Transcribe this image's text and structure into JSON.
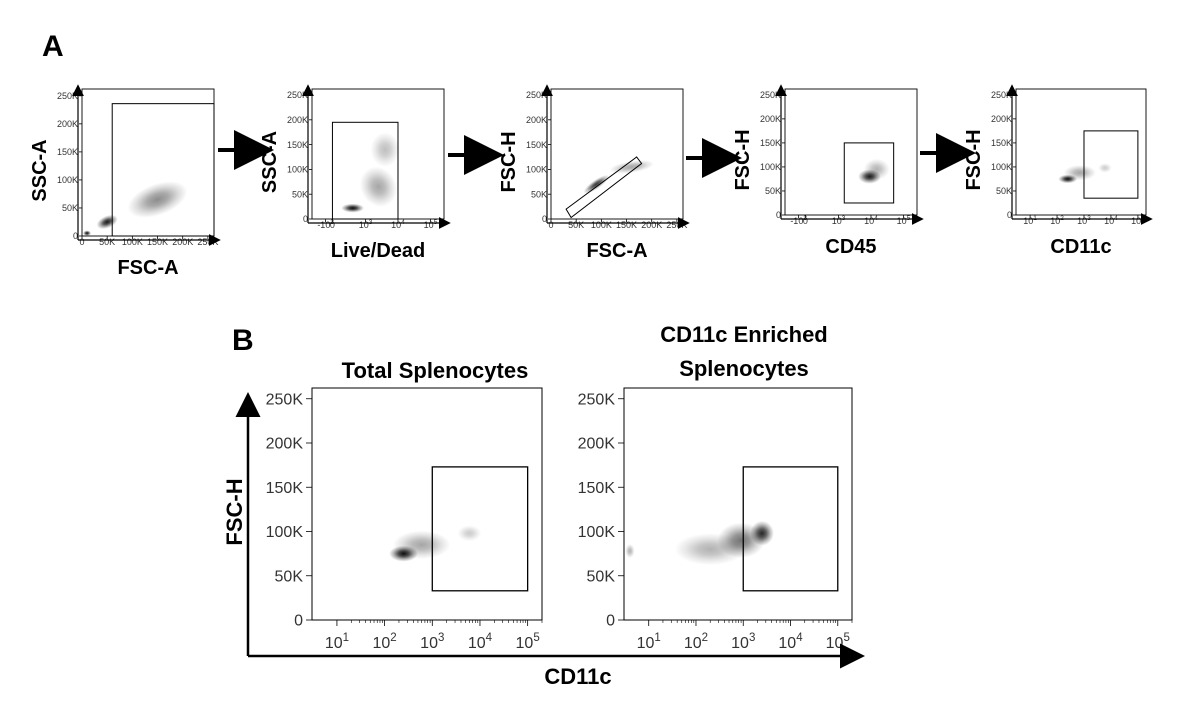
{
  "panels": {
    "a": "A",
    "b": "B"
  },
  "chart_data": [
    {
      "type": "heatmap",
      "id": "a1",
      "xlabel": "FSC-A",
      "ylabel": "SSC-A",
      "x_scale": "linear",
      "x_ticks": [
        "0",
        "50K",
        "100K",
        "150K",
        "200K",
        "250K"
      ],
      "y_ticks": [
        "0",
        "50K",
        "100K",
        "150K",
        "200K",
        "250K"
      ],
      "x_range": [
        0,
        262144
      ],
      "y_range": [
        0,
        262144
      ],
      "gate": {
        "x": [
          60000,
          262144
        ],
        "y": [
          0,
          236000
        ]
      },
      "density": [
        {
          "x": 150000,
          "y": 65000,
          "sx": 62000,
          "sy": 28000,
          "rot": -0.35,
          "w": 0.45
        },
        {
          "x": 50000,
          "y": 25000,
          "sx": 22000,
          "sy": 11000,
          "rot": -0.4,
          "w": 0.9
        },
        {
          "x": 10000,
          "y": 5000,
          "sx": 8000,
          "sy": 5000,
          "rot": 0,
          "w": 0.95
        }
      ]
    },
    {
      "type": "heatmap",
      "id": "a2",
      "xlabel": "Live/Dead",
      "ylabel": "SSC-A",
      "x_scale": "biex",
      "x_ticks": [
        "-10^3",
        "0",
        "10^3",
        "10^4",
        "10^5"
      ],
      "y_ticks": [
        "0",
        "50K",
        "100K",
        "150K",
        "200K",
        "250K"
      ],
      "x_range": [
        -3000,
        262144
      ],
      "y_range": [
        0,
        262144
      ],
      "gate": {
        "x": [
          0,
          10000
        ],
        "y": [
          0,
          195000
        ]
      },
      "density": [
        {
          "x": 2500,
          "y": 65000,
          "sx": 0.55,
          "sy": 42000,
          "rot": -0.5,
          "w": 0.35
        },
        {
          "x": 4000,
          "y": 140000,
          "sx": 0.45,
          "sy": 35000,
          "rot": 0,
          "w": 0.25
        },
        {
          "x": 400,
          "y": 22000,
          "sx": 0.35,
          "sy": 9000,
          "rot": 0,
          "w": 0.95
        }
      ]
    },
    {
      "type": "heatmap",
      "id": "a3",
      "xlabel": "FSC-A",
      "ylabel": "FSC-H",
      "x_scale": "linear",
      "x_ticks": [
        "0",
        "50K",
        "100K",
        "150K",
        "200K",
        "250K"
      ],
      "y_ticks": [
        "0",
        "50K",
        "100K",
        "150K",
        "200K",
        "250K"
      ],
      "x_range": [
        0,
        262144
      ],
      "y_range": [
        0,
        262144
      ],
      "gate_polygon": [
        [
          30000,
          20000
        ],
        [
          170000,
          125000
        ],
        [
          180000,
          112000
        ],
        [
          40000,
          3000
        ]
      ],
      "density": [
        {
          "x": 160000,
          "y": 105000,
          "sx": 45000,
          "sy": 12000,
          "rot": -0.15,
          "w": 0.35
        },
        {
          "x": 90000,
          "y": 70000,
          "sx": 30000,
          "sy": 9000,
          "rot": -0.6,
          "w": 0.8
        }
      ]
    },
    {
      "type": "heatmap",
      "id": "a4",
      "xlabel": "CD45",
      "ylabel": "FSC-H",
      "x_scale": "biex",
      "x_ticks": [
        "-10^3",
        "0",
        "10^3",
        "10^4",
        "10^5"
      ],
      "y_ticks": [
        "0",
        "50K",
        "100K",
        "150K",
        "200K",
        "250K"
      ],
      "x_range": [
        -3000,
        262144
      ],
      "y_range": [
        0,
        262144
      ],
      "gate": {
        "x": [
          1500,
          50000
        ],
        "y": [
          25000,
          150000
        ]
      },
      "density": [
        {
          "x": 9000,
          "y": 80000,
          "sx": 0.35,
          "sy": 15000,
          "rot": 0,
          "w": 0.9
        },
        {
          "x": 15000,
          "y": 95000,
          "sx": 0.4,
          "sy": 22000,
          "rot": 0,
          "w": 0.3
        }
      ]
    },
    {
      "type": "heatmap",
      "id": "a5",
      "xlabel": "CD11c",
      "ylabel": "FSC-H",
      "x_scale": "log",
      "x_ticks": [
        "10^1",
        "10^2",
        "10^3",
        "10^4",
        "10^5"
      ],
      "y_ticks": [
        "0",
        "50K",
        "100K",
        "150K",
        "200K",
        "250K"
      ],
      "x_range": [
        3,
        200000
      ],
      "y_range": [
        0,
        262144
      ],
      "gate": {
        "x": [
          1000,
          100000
        ],
        "y": [
          35000,
          175000
        ]
      },
      "density": [
        {
          "x": 250,
          "y": 75000,
          "sx": 0.35,
          "sy": 9000,
          "rot": 0,
          "w": 0.95
        },
        {
          "x": 700,
          "y": 88000,
          "sx": 0.6,
          "sy": 16000,
          "rot": 0,
          "w": 0.35
        },
        {
          "x": 6000,
          "y": 98000,
          "sx": 0.25,
          "sy": 10000,
          "rot": 0,
          "w": 0.2
        }
      ]
    },
    {
      "type": "heatmap",
      "id": "b1",
      "title": "Total Splenocytes",
      "xlabel": "",
      "ylabel": "",
      "x_scale": "log",
      "x_ticks": [
        "10^1",
        "10^2",
        "10^3",
        "10^4",
        "10^5"
      ],
      "y_ticks": [
        "0",
        "50K",
        "100K",
        "150K",
        "200K",
        "250K"
      ],
      "x_range": [
        3,
        200000
      ],
      "y_range": [
        0,
        262144
      ],
      "gate": {
        "x": [
          1000,
          100000
        ],
        "y": [
          33000,
          173000
        ]
      },
      "density": [
        {
          "x": 250,
          "y": 75000,
          "sx": 0.3,
          "sy": 9000,
          "rot": 0,
          "w": 0.95
        },
        {
          "x": 600,
          "y": 85000,
          "sx": 0.6,
          "sy": 16000,
          "rot": 0,
          "w": 0.35
        },
        {
          "x": 6000,
          "y": 98000,
          "sx": 0.25,
          "sy": 9000,
          "rot": 0,
          "w": 0.2
        }
      ]
    },
    {
      "type": "heatmap",
      "id": "b2",
      "title_lines": [
        "CD11c Enriched",
        "Splenocytes"
      ],
      "xlabel": "",
      "ylabel": "",
      "x_scale": "log",
      "x_ticks": [
        "10^1",
        "10^2",
        "10^3",
        "10^4",
        "10^5"
      ],
      "y_ticks": [
        "0",
        "50K",
        "100K",
        "150K",
        "200K",
        "250K"
      ],
      "x_range": [
        3,
        200000
      ],
      "y_range": [
        0,
        262144
      ],
      "gate": {
        "x": [
          1000,
          100000
        ],
        "y": [
          33000,
          173000
        ]
      },
      "density": [
        {
          "x": 200,
          "y": 80000,
          "sx": 0.75,
          "sy": 18000,
          "rot": 0,
          "w": 0.3
        },
        {
          "x": 900,
          "y": 90000,
          "sx": 0.5,
          "sy": 20000,
          "rot": 0,
          "w": 0.55
        },
        {
          "x": 2500,
          "y": 98000,
          "sx": 0.25,
          "sy": 14000,
          "rot": 0,
          "w": 0.85
        },
        {
          "x": 4,
          "y": 78000,
          "sx": 0.1,
          "sy": 8000,
          "rot": 0,
          "w": 0.3
        }
      ]
    }
  ],
  "shared_axes_b": {
    "xlabel": "CD11c",
    "ylabel": "FSC-H"
  }
}
